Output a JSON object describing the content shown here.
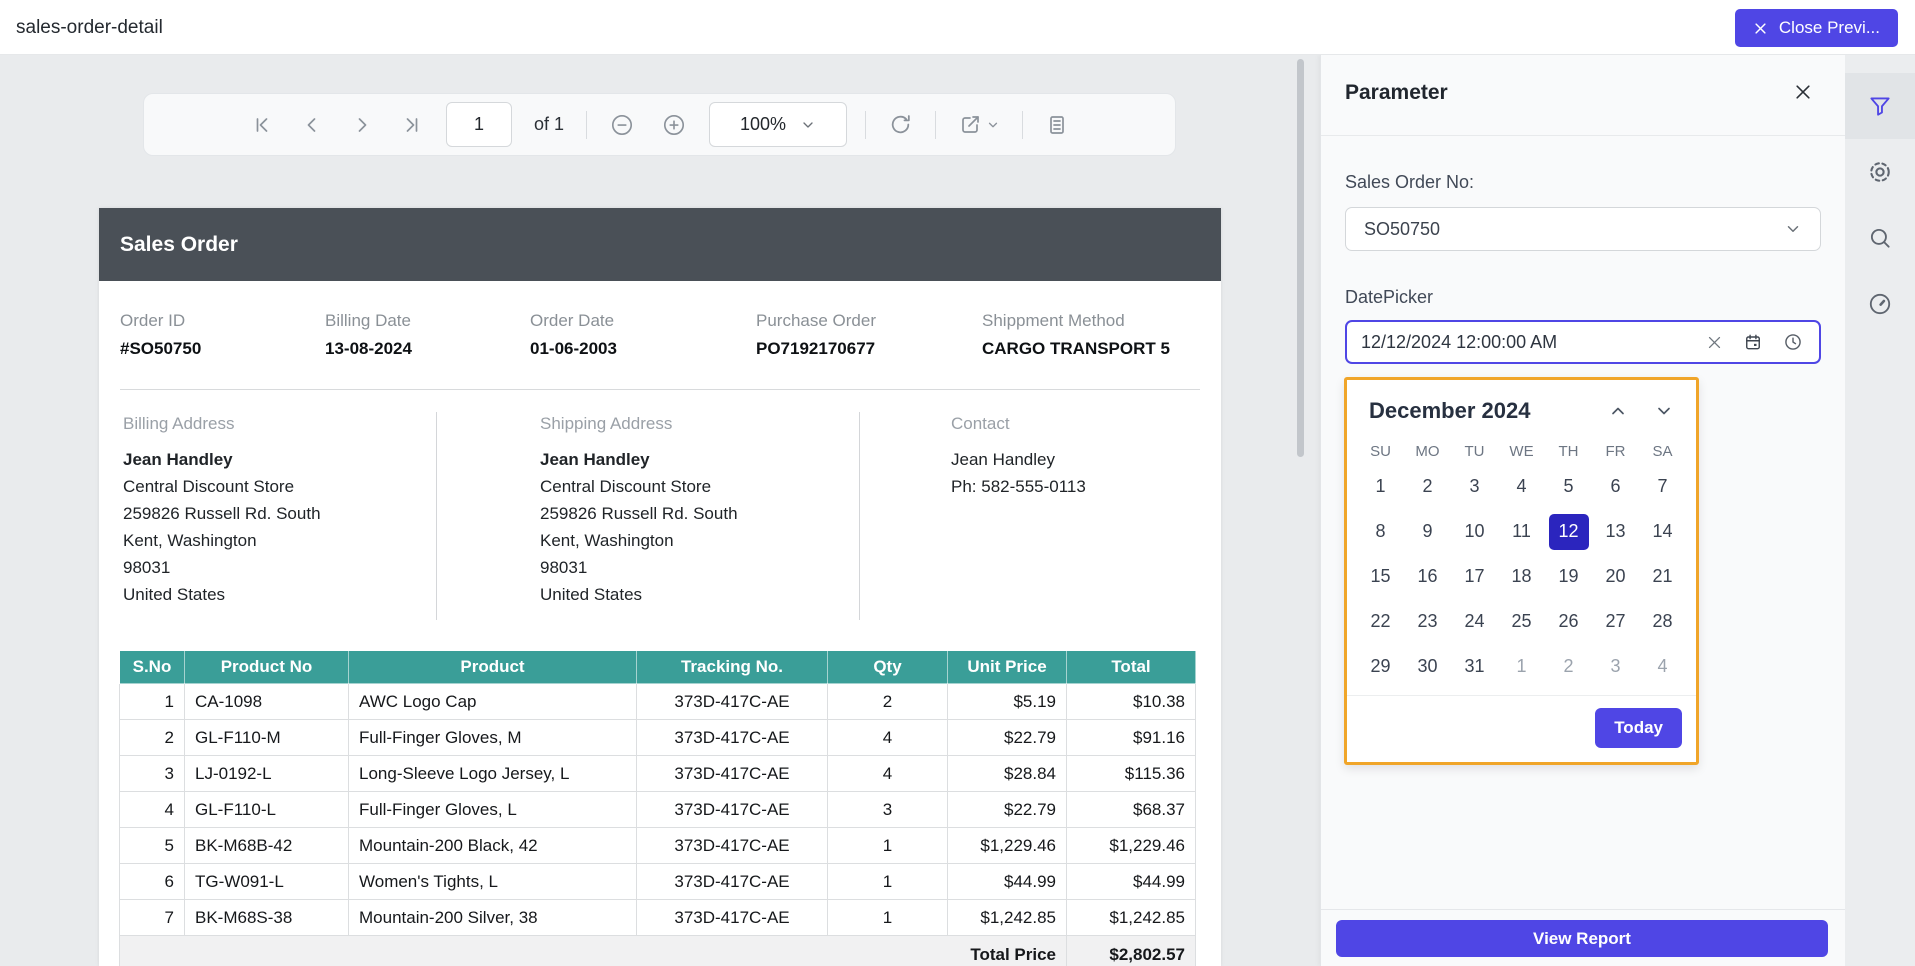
{
  "colors": {
    "accent": "#4f46e5",
    "selected": "#2b25be",
    "teal": "#3a9e98",
    "band": "#4a5057",
    "cal_border": "#f0a529"
  },
  "titlebar": {
    "title": "sales-order-detail",
    "close_preview_label": "Close Previ..."
  },
  "toolbar": {
    "page_value": "1",
    "page_total_label": "of 1",
    "zoom_value": "100%",
    "icons": [
      "first-page",
      "previous-page",
      "next-page",
      "last-page",
      "zoom-out",
      "zoom-in",
      "zoom-level-select",
      "refresh",
      "export",
      "print-layout"
    ]
  },
  "report": {
    "title": "Sales Order",
    "fields": [
      {
        "label": "Order ID",
        "value": "#SO50750"
      },
      {
        "label": "Billing Date",
        "value": "13-08-2024"
      },
      {
        "label": "Order Date",
        "value": "01-06-2003"
      },
      {
        "label": "Purchase Order",
        "value": "PO7192170677"
      },
      {
        "label": "Shippment Method",
        "value": "CARGO TRANSPORT 5"
      }
    ],
    "billing": {
      "label": "Billing Address",
      "lines": [
        "Jean Handley",
        "Central Discount Store",
        "259826 Russell Rd. South",
        "Kent, Washington",
        "98031",
        "United States"
      ]
    },
    "shipping": {
      "label": "Shipping Address",
      "lines": [
        "Jean Handley",
        "Central Discount Store",
        "259826 Russell Rd. South",
        "Kent, Washington",
        "98031",
        "United States"
      ]
    },
    "contact": {
      "label": "Contact",
      "lines": [
        "Jean Handley",
        "Ph: 582-555-0113"
      ]
    },
    "table": {
      "columns": [
        "S.No",
        "Product No",
        "Product",
        "Tracking No.",
        "Qty",
        "Unit Price",
        "Total"
      ],
      "rows": [
        [
          "1",
          "CA-1098",
          "AWC Logo Cap",
          "373D-417C-AE",
          "2",
          "$5.19",
          "$10.38"
        ],
        [
          "2",
          "GL-F110-M",
          "Full-Finger Gloves, M",
          "373D-417C-AE",
          "4",
          "$22.79",
          "$91.16"
        ],
        [
          "3",
          "LJ-0192-L",
          "Long-Sleeve Logo Jersey, L",
          "373D-417C-AE",
          "4",
          "$28.84",
          "$115.36"
        ],
        [
          "4",
          "GL-F110-L",
          "Full-Finger Gloves, L",
          "373D-417C-AE",
          "3",
          "$22.79",
          "$68.37"
        ],
        [
          "5",
          "BK-M68B-42",
          "Mountain-200 Black, 42",
          "373D-417C-AE",
          "1",
          "$1,229.46",
          "$1,229.46"
        ],
        [
          "6",
          "TG-W091-L",
          "Women's Tights, L",
          "373D-417C-AE",
          "1",
          "$44.99",
          "$44.99"
        ],
        [
          "7",
          "BK-M68S-38",
          "Mountain-200 Silver, 38",
          "373D-417C-AE",
          "1",
          "$1,242.85",
          "$1,242.85"
        ]
      ],
      "footer": {
        "label": "Total Price",
        "value": "$2,802.57"
      }
    }
  },
  "parameter": {
    "title": "Parameter",
    "sales_order": {
      "label": "Sales Order No:",
      "value": "SO50750"
    },
    "datepicker": {
      "label": "DatePicker",
      "value": "12/12/2024 12:00:00 AM"
    },
    "calendar": {
      "month_label": "December 2024",
      "weekdays": [
        "SU",
        "MO",
        "TU",
        "WE",
        "TH",
        "FR",
        "SA"
      ],
      "weeks": [
        [
          {
            "d": "1",
            "s": "n"
          },
          {
            "d": "2",
            "s": "n"
          },
          {
            "d": "3",
            "s": "n"
          },
          {
            "d": "4",
            "s": "n"
          },
          {
            "d": "5",
            "s": "n"
          },
          {
            "d": "6",
            "s": "n"
          },
          {
            "d": "7",
            "s": "n"
          }
        ],
        [
          {
            "d": "8",
            "s": "n"
          },
          {
            "d": "9",
            "s": "n"
          },
          {
            "d": "10",
            "s": "n"
          },
          {
            "d": "11",
            "s": "n"
          },
          {
            "d": "12",
            "s": "sel"
          },
          {
            "d": "13",
            "s": "n"
          },
          {
            "d": "14",
            "s": "n"
          }
        ],
        [
          {
            "d": "15",
            "s": "n"
          },
          {
            "d": "16",
            "s": "n"
          },
          {
            "d": "17",
            "s": "n"
          },
          {
            "d": "18",
            "s": "n"
          },
          {
            "d": "19",
            "s": "n"
          },
          {
            "d": "20",
            "s": "n"
          },
          {
            "d": "21",
            "s": "n"
          }
        ],
        [
          {
            "d": "22",
            "s": "n"
          },
          {
            "d": "23",
            "s": "n"
          },
          {
            "d": "24",
            "s": "n"
          },
          {
            "d": "25",
            "s": "n"
          },
          {
            "d": "26",
            "s": "n"
          },
          {
            "d": "27",
            "s": "n"
          },
          {
            "d": "28",
            "s": "n"
          }
        ],
        [
          {
            "d": "29",
            "s": "n"
          },
          {
            "d": "30",
            "s": "n"
          },
          {
            "d": "31",
            "s": "n"
          },
          {
            "d": "1",
            "s": "m"
          },
          {
            "d": "2",
            "s": "m"
          },
          {
            "d": "3",
            "s": "m"
          },
          {
            "d": "4",
            "s": "m"
          }
        ]
      ],
      "selected_day": "12",
      "today_label": "Today"
    },
    "view_report_label": "View Report",
    "rail_icons": [
      "filter",
      "settings",
      "search",
      "performance"
    ]
  }
}
